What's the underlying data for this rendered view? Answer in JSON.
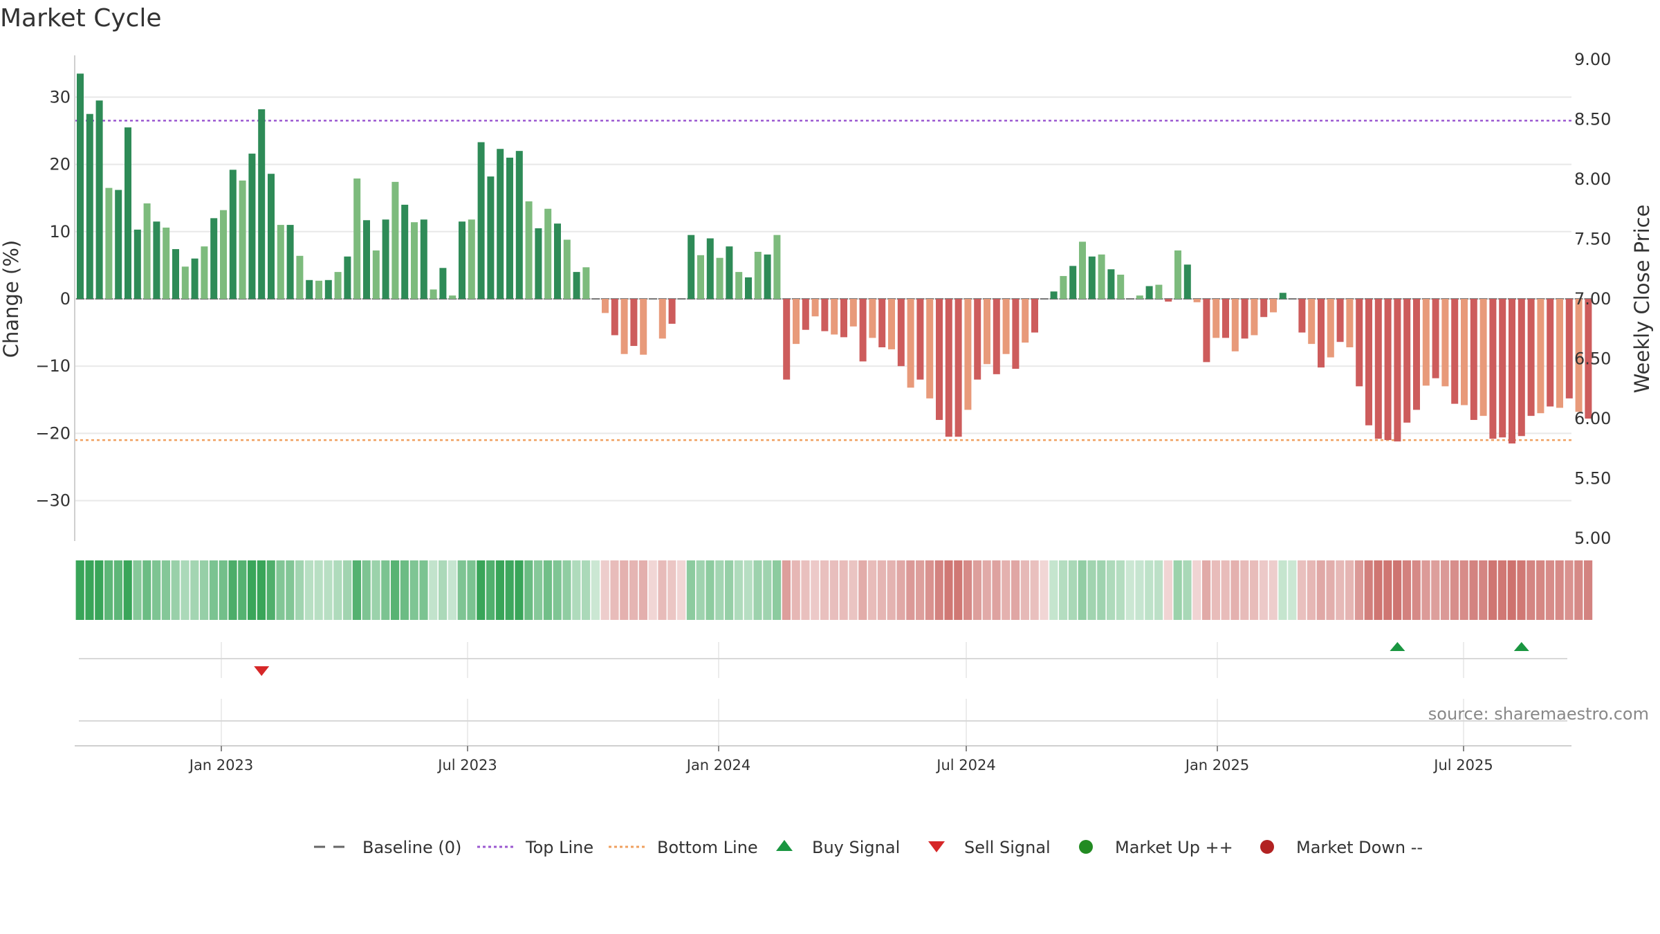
{
  "chart_data": {
    "type": "bar",
    "title": "Market Cycle",
    "ylabel_left": "Change (%)",
    "ylabel_right": "Weekly Close Price",
    "ylim_left": [
      -36,
      36
    ],
    "ylim_right": [
      5.0,
      9.0
    ],
    "yticks_left": [
      30,
      20,
      10,
      0,
      -10,
      -20,
      -30
    ],
    "yticks_left_labels": [
      "30",
      "20",
      "10",
      "0",
      "−10",
      "−20",
      "−30"
    ],
    "yticks_right_labels": [
      "9.00",
      "8.50",
      "8.00",
      "7.50",
      "7.00",
      "6.50",
      "6.00",
      "5.50",
      "5.00"
    ],
    "x_tick_labels": [
      "Jan 2023",
      "Jul 2023",
      "Jan 2024",
      "Jul 2024",
      "Jan 2025",
      "Jul 2025"
    ],
    "top_line": 26.5,
    "bottom_line": -21,
    "baseline": 0,
    "series_change_values": [
      33.5,
      27.5,
      29.5,
      16.5,
      16.2,
      25.5,
      10.3,
      14.2,
      11.5,
      10.6,
      7.4,
      4.8,
      6,
      7.8,
      12,
      13.2,
      19.2,
      17.6,
      21.6,
      28.2,
      18.6,
      11,
      11,
      6.4,
      2.8,
      2.7,
      2.8,
      4,
      6.3,
      17.9,
      11.7,
      7.2,
      11.8,
      17.4,
      14,
      11.4,
      11.8,
      1.4,
      4.6,
      0.5,
      11.5,
      11.8,
      23.3,
      18.2,
      22.3,
      21,
      22,
      14.5,
      10.5,
      13.4,
      11.2,
      8.8,
      4,
      4.7,
      0,
      -2.1,
      -5.4,
      -8.2,
      -7,
      -8.3,
      0,
      -5.9,
      -3.7,
      0,
      9.5,
      6.5,
      9,
      6.1,
      7.8,
      4,
      3.2,
      7,
      6.6,
      9.5,
      -12,
      -6.7,
      -4.6,
      -2.6,
      -4.8,
      -5.3,
      -5.7,
      -4.1,
      -9.3,
      -5.8,
      -7.2,
      -7.5,
      -10,
      -13.2,
      -12,
      -14.8,
      -18,
      -20.5,
      -20.5,
      -16.5,
      -12,
      -9.7,
      -11.2,
      -8.2,
      -10.4,
      -6.5,
      -5,
      0,
      1.1,
      3.4,
      4.9,
      8.5,
      6.3,
      6.6,
      4.4,
      3.6,
      0,
      0.5,
      1.9,
      2.1,
      -0.4,
      7.2,
      5.1,
      -0.5,
      -9.4,
      -5.8,
      -5.8,
      -7.8,
      -5.9,
      -5.4,
      -2.7,
      -2,
      0.9,
      0,
      -5,
      -6.7,
      -10.2,
      -8.7,
      -6.4,
      -7.2,
      -13,
      -18.8,
      -20.8,
      -21,
      -21.2,
      -18.4,
      -16.5,
      -12.9,
      -11.8,
      -13,
      -15.6,
      -15.8,
      -18,
      -17.4,
      -20.8,
      -20.6,
      -21.5,
      -20.4,
      -17.4,
      -17,
      -16,
      -16.2,
      -14.8,
      -16.8,
      -17.8
    ],
    "signals": [
      {
        "type": "sell",
        "label": "Sell Signal",
        "bar_index": 19,
        "color": "#d62728"
      },
      {
        "type": "buy",
        "label": "Buy Signal",
        "bar_index": 138,
        "color": "#1a9641"
      },
      {
        "type": "buy",
        "label": "Buy Signal",
        "bar_index": 151,
        "color": "#1a9641"
      }
    ],
    "legend": [
      {
        "label": "Baseline (0)",
        "style": "dash-gray",
        "color": "#666666"
      },
      {
        "label": "Top Line",
        "style": "dot-purple",
        "color": "#9b59d0"
      },
      {
        "label": "Bottom Line",
        "style": "dot-orange",
        "color": "#f0a060"
      },
      {
        "label": "Buy Signal",
        "style": "triangle-up",
        "color": "#1a9641"
      },
      {
        "label": "Sell Signal",
        "style": "triangle-down",
        "color": "#d62728"
      },
      {
        "label": "Market Up ++",
        "style": "circle",
        "color": "#228b22"
      },
      {
        "label": "Market Down --",
        "style": "circle",
        "color": "#b22222"
      }
    ],
    "colors": {
      "up_strong": "#2e8b57",
      "up_light": "#7dbb7d",
      "down_strong": "#cd5c5c",
      "down_light": "#e89a7a",
      "top_line": "#9b59d0",
      "bottom_line": "#f0a060"
    },
    "grid": true,
    "legend_position": "bottom"
  },
  "source": "source: sharemaestro.com"
}
